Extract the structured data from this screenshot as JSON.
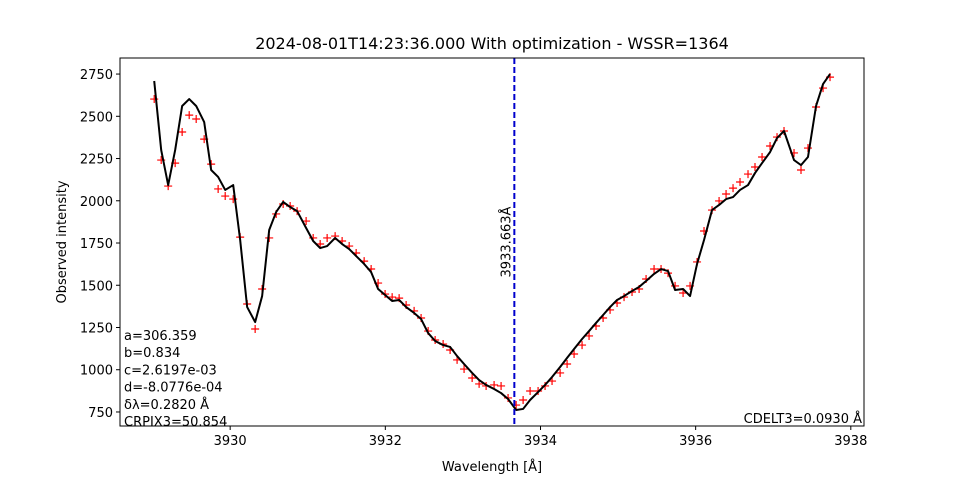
{
  "chart_data": {
    "type": "line",
    "title": "2024-08-01T14:23:36.000 With optimization - WSSR=1364",
    "x_label": "Wavelength [Å]",
    "y_label": "Observed intensity",
    "xlim": [
      3928.58,
      3938.17
    ],
    "ylim": [
      667,
      2845
    ],
    "xticks": [
      3930,
      3932,
      3934,
      3936,
      3938
    ],
    "yticks": [
      750,
      1000,
      1250,
      1500,
      1750,
      2000,
      2250,
      2500,
      2750
    ],
    "grid": false,
    "x": [
      3929.021,
      3929.111,
      3929.201,
      3929.291,
      3929.381,
      3929.472,
      3929.562,
      3929.665,
      3929.755,
      3929.845,
      3929.936,
      3930.039,
      3930.129,
      3930.219,
      3930.322,
      3930.412,
      3930.503,
      3930.593,
      3930.683,
      3930.773,
      3930.863,
      3930.979,
      3931.07,
      3931.16,
      3931.25,
      3931.353,
      3931.443,
      3931.534,
      3931.624,
      3931.727,
      3931.817,
      3931.907,
      3931.997,
      3932.088,
      3932.178,
      3932.268,
      3932.371,
      3932.461,
      3932.552,
      3932.642,
      3932.745,
      3932.835,
      3932.925,
      3933.015,
      3933.119,
      3933.209,
      3933.299,
      3933.402,
      3933.492,
      3933.582,
      3933.686,
      3933.776,
      3933.866,
      3933.969,
      3934.059,
      3934.149,
      3934.253,
      3934.343,
      3934.433,
      3934.536,
      3934.626,
      3934.716,
      3934.807,
      3934.897,
      3934.987,
      3935.077,
      3935.18,
      3935.271,
      3935.361,
      3935.464,
      3935.554,
      3935.644,
      3935.735,
      3935.838,
      3935.928,
      3936.018,
      3936.108,
      3936.211,
      3936.302,
      3936.392,
      3936.482,
      3936.572,
      3936.675,
      3936.765,
      3936.856,
      3936.959,
      3937.049,
      3937.139,
      3937.268,
      3937.358,
      3937.448,
      3937.552,
      3937.642,
      3937.732
    ],
    "series": [
      {
        "style": "markers",
        "color": "#ff0000",
        "values": [
          2602,
          2241,
          2087,
          2223,
          2407,
          2507,
          2484,
          2365,
          2217,
          2070,
          2028,
          2010,
          1785,
          1389,
          1241,
          1478,
          1780,
          1922,
          1981,
          1969,
          1939,
          1880,
          1780,
          1744,
          1780,
          1791,
          1762,
          1732,
          1691,
          1643,
          1596,
          1513,
          1448,
          1430,
          1424,
          1383,
          1348,
          1306,
          1229,
          1176,
          1152,
          1117,
          1058,
          1004,
          951,
          916,
          904,
          910,
          904,
          833,
          791,
          821,
          874,
          874,
          904,
          933,
          981,
          1034,
          1093,
          1146,
          1200,
          1259,
          1306,
          1354,
          1395,
          1430,
          1460,
          1478,
          1537,
          1596,
          1596,
          1572,
          1496,
          1454,
          1496,
          1638,
          1821,
          1945,
          1999,
          2040,
          2075,
          2111,
          2158,
          2200,
          2259,
          2324,
          2377,
          2413,
          2283,
          2182,
          2312,
          2555,
          2667,
          2732
        ]
      },
      {
        "style": "line",
        "color": "#000000",
        "values": [
          2709,
          2300,
          2093,
          2300,
          2561,
          2602,
          2561,
          2466,
          2182,
          2141,
          2064,
          2093,
          1768,
          1371,
          1282,
          1436,
          1827,
          1934,
          1993,
          1963,
          1939,
          1839,
          1762,
          1720,
          1732,
          1780,
          1744,
          1714,
          1673,
          1626,
          1578,
          1478,
          1442,
          1407,
          1413,
          1371,
          1336,
          1300,
          1217,
          1170,
          1146,
          1135,
          1081,
          1034,
          981,
          939,
          910,
          886,
          862,
          827,
          762,
          768,
          821,
          868,
          910,
          957,
          1016,
          1070,
          1123,
          1182,
          1229,
          1277,
          1324,
          1371,
          1413,
          1436,
          1466,
          1490,
          1525,
          1567,
          1596,
          1584,
          1472,
          1478,
          1436,
          1626,
          1768,
          1945,
          1975,
          2010,
          2022,
          2064,
          2093,
          2164,
          2223,
          2288,
          2371,
          2413,
          2241,
          2211,
          2259,
          2561,
          2691,
          2750
        ]
      }
    ],
    "vline": {
      "x": 3933.663,
      "label": "3933.663Å",
      "color": "#0000cc"
    },
    "annotations_left": [
      "a=306.359",
      "b=0.834",
      "c=2.6197e-03",
      "d=-8.0776e-04",
      "δλ=0.2820 Å",
      "CRPIX3=50.854"
    ],
    "annotation_right": "CDELT3=0.0930 Å"
  }
}
